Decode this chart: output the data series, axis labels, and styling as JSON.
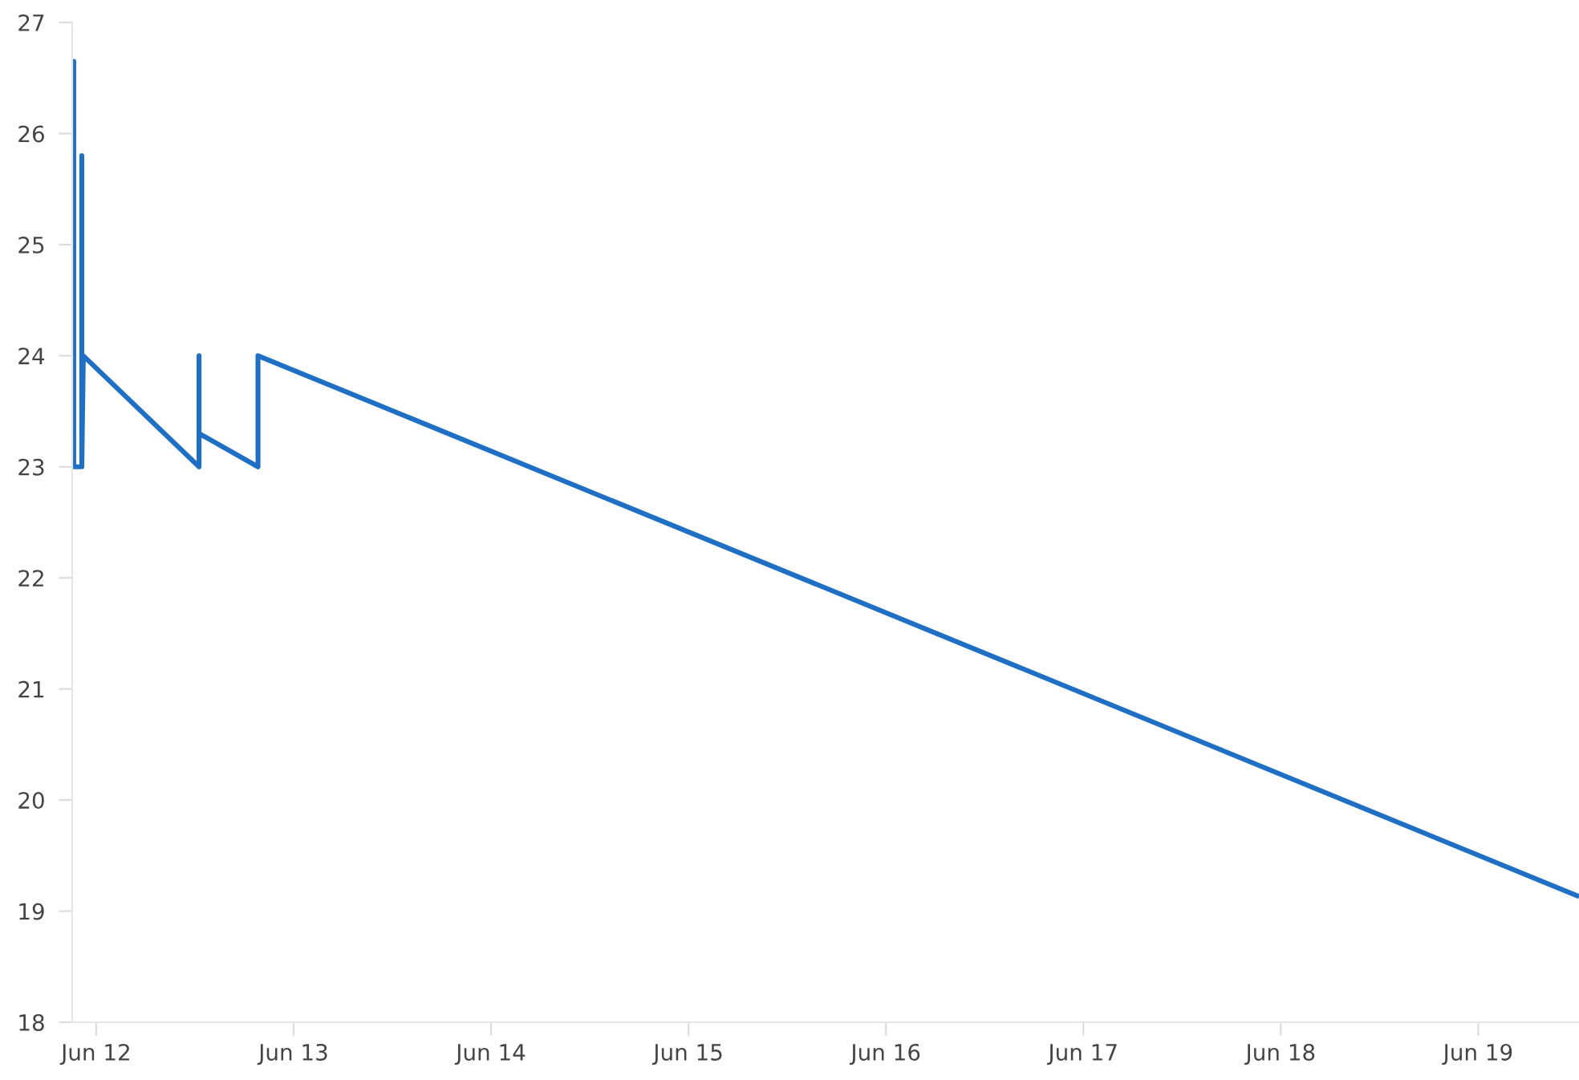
{
  "chart_data": {
    "type": "line",
    "x": [
      "--06-11T21:16",
      "--06-11T21:16",
      "--06-11T21:16",
      "--06-11T22:15",
      "--06-11T22:15",
      "--06-11T22:15",
      "--06-11T22:26",
      "--06-12T12:30",
      "--06-12T12:30",
      "--06-12T12:30",
      "--06-12T19:40",
      "--06-12T19:40",
      "--06-19T12:00"
    ],
    "series": [
      {
        "color": "#1f6fc5",
        "values": [
          23,
          26.65,
          23,
          23,
          25.8,
          23,
          24,
          23,
          24,
          23.3,
          23,
          24,
          19.14
        ]
      }
    ],
    "xlim": [
      "--06-11T21:05",
      "--06-19T12:15"
    ],
    "xticks": [
      {
        "value": "--06-12",
        "label": "Jun 12"
      },
      {
        "value": "--06-13",
        "label": "Jun 13"
      },
      {
        "value": "--06-14",
        "label": "Jun 14"
      },
      {
        "value": "--06-15",
        "label": "Jun 15"
      },
      {
        "value": "--06-16",
        "label": "Jun 16"
      },
      {
        "value": "--06-17",
        "label": "Jun 17"
      },
      {
        "value": "--06-18",
        "label": "Jun 18"
      },
      {
        "value": "--06-19",
        "label": "Jun 19"
      }
    ],
    "ylim": [
      18,
      27
    ],
    "yticks": [
      18,
      19,
      20,
      21,
      22,
      23,
      24,
      25,
      26,
      27
    ],
    "grid": false,
    "marker": "none",
    "line_style": "solid"
  }
}
